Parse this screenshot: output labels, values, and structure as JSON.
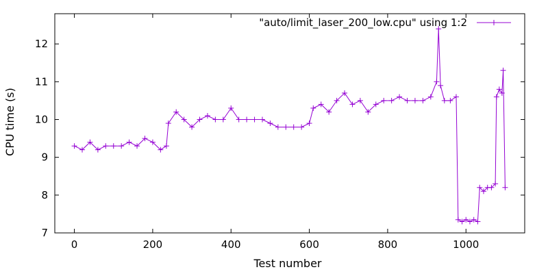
{
  "chart_data": {
    "type": "line",
    "xlabel": "Test number",
    "ylabel": "CPU time (s)",
    "xlim": [
      -50,
      1150
    ],
    "ylim": [
      7,
      12.8
    ],
    "xticks": [
      0,
      200,
      400,
      600,
      800,
      1000
    ],
    "yticks": [
      7,
      8,
      9,
      10,
      11,
      12
    ],
    "grid": false,
    "legend_position": "top-right",
    "marker": "plus",
    "series": [
      {
        "name": "\"auto/limit_laser_200_low.cpu\" using 1:2",
        "color": "#9400d3",
        "segments": [
          {
            "x": [
              0,
              20,
              40,
              60,
              80,
              100,
              120,
              140,
              160,
              180,
              200,
              220,
              235
            ],
            "y": [
              9.3,
              9.2,
              9.4,
              9.2,
              9.3,
              9.3,
              9.3,
              9.4,
              9.3,
              9.5,
              9.4,
              9.2,
              9.3
            ]
          },
          {
            "x": [
              240,
              260,
              280,
              300,
              320,
              340,
              360,
              380,
              400,
              420,
              440,
              460,
              480,
              500,
              520,
              540,
              560,
              580,
              600
            ],
            "y": [
              9.9,
              10.2,
              10.0,
              9.8,
              10.0,
              10.1,
              10.0,
              10.0,
              10.3,
              10.0,
              10.0,
              10.0,
              10.0,
              9.9,
              9.8,
              9.8,
              9.8,
              9.8,
              9.9
            ]
          },
          {
            "x": [
              610,
              630,
              650,
              670,
              690,
              710,
              730,
              750,
              770,
              790,
              810,
              830,
              850,
              870,
              890,
              910,
              925,
              930,
              935,
              945,
              960,
              975
            ],
            "y": [
              10.3,
              10.4,
              10.2,
              10.5,
              10.7,
              10.4,
              10.5,
              10.2,
              10.4,
              10.5,
              10.5,
              10.6,
              10.5,
              10.5,
              10.5,
              10.6,
              11.0,
              12.4,
              10.9,
              10.5,
              10.5,
              10.6
            ]
          },
          {
            "x": [
              980,
              990,
              1000,
              1010,
              1020,
              1030
            ],
            "y": [
              7.35,
              7.3,
              7.35,
              7.3,
              7.35,
              7.3
            ]
          },
          {
            "x": [
              1035,
              1045,
              1055,
              1065,
              1075
            ],
            "y": [
              8.2,
              8.1,
              8.2,
              8.2,
              8.3
            ]
          },
          {
            "x": [
              1078,
              1085,
              1092
            ],
            "y": [
              10.6,
              10.8,
              10.7
            ]
          },
          {
            "x": [
              1095,
              1100
            ],
            "y": [
              11.3,
              8.2
            ]
          }
        ]
      }
    ]
  }
}
